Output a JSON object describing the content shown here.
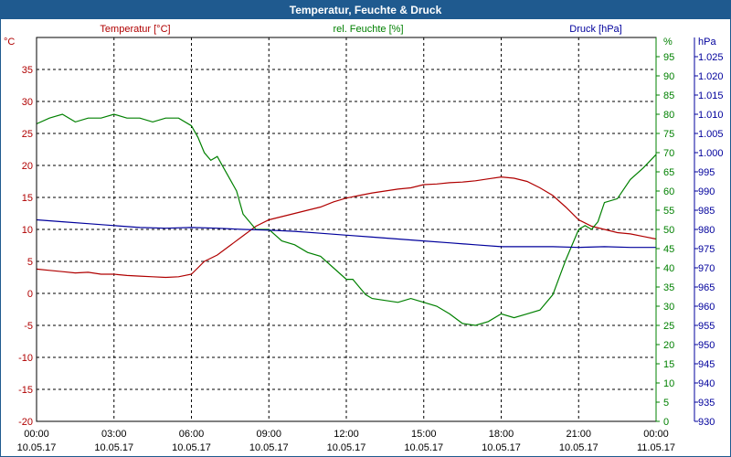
{
  "window": {
    "title": "Temperatur, Feuchte & Druck"
  },
  "chart_data": {
    "type": "line",
    "title": "Temperatur, Feuchte & Druck",
    "grid": true,
    "x_axis": {
      "range_hours": [
        0,
        24
      ],
      "ticks": [
        {
          "h": 0,
          "time": "00:00",
          "date": "10.05.17"
        },
        {
          "h": 3,
          "time": "03:00",
          "date": "10.05.17"
        },
        {
          "h": 6,
          "time": "06:00",
          "date": "10.05.17"
        },
        {
          "h": 9,
          "time": "09:00",
          "date": "10.05.17"
        },
        {
          "h": 12,
          "time": "12:00",
          "date": "10.05.17"
        },
        {
          "h": 15,
          "time": "15:00",
          "date": "10.05.17"
        },
        {
          "h": 18,
          "time": "18:00",
          "date": "10.05.17"
        },
        {
          "h": 21,
          "time": "21:00",
          "date": "10.05.17"
        },
        {
          "h": 24,
          "time": "00:00",
          "date": "11.05.17"
        }
      ]
    },
    "axes": {
      "temperature": {
        "label": "Temperatur [°C]",
        "unit": "°C",
        "ylim": [
          -20,
          40
        ],
        "ticks": [
          "35",
          "30",
          "25",
          "20",
          "15",
          "10",
          "5",
          "0",
          "-5",
          "-10",
          "-15",
          "-20"
        ],
        "color": "#b00000"
      },
      "humidity": {
        "label": "rel. Feuchte [%]",
        "unit": "%",
        "ylim": [
          0,
          100
        ],
        "ticks": [
          "95",
          "90",
          "85",
          "80",
          "75",
          "70",
          "65",
          "60",
          "55",
          "50",
          "45",
          "40",
          "35",
          "30",
          "25",
          "20",
          "15",
          "10",
          "5",
          "0"
        ],
        "color": "#008000"
      },
      "pressure": {
        "label": "Druck [hPa]",
        "unit": "hPa",
        "ylim": [
          930,
          1030
        ],
        "ticks": [
          "1.025",
          "1.020",
          "1.015",
          "1.010",
          "1.005",
          "1.000",
          "995",
          "990",
          "985",
          "980",
          "975",
          "970",
          "965",
          "960",
          "955",
          "950",
          "945",
          "940",
          "935",
          "930"
        ],
        "color": "#00009c"
      }
    },
    "series": [
      {
        "name": "Temperatur",
        "axis": "temperature",
        "color": "#b00000",
        "x": [
          0,
          0.5,
          1,
          1.5,
          2,
          2.5,
          3,
          3.5,
          4,
          4.5,
          5,
          5.5,
          6,
          6.25,
          6.5,
          6.75,
          7,
          7.5,
          8,
          8.5,
          9,
          9.5,
          10,
          10.5,
          11,
          11.5,
          12,
          12.5,
          13,
          13.5,
          14,
          14.5,
          15,
          15.5,
          16,
          16.5,
          17,
          17.5,
          18,
          18.5,
          19,
          19.5,
          20,
          20.5,
          21,
          21.5,
          22,
          22.5,
          23,
          23.5,
          24
        ],
        "values": [
          3.8,
          3.6,
          3.4,
          3.2,
          3.3,
          3.0,
          3.0,
          2.8,
          2.7,
          2.6,
          2.5,
          2.6,
          3.0,
          4.0,
          5.0,
          5.5,
          6.0,
          7.5,
          9.0,
          10.5,
          11.5,
          12.0,
          12.5,
          13.0,
          13.5,
          14.3,
          14.9,
          15.3,
          15.7,
          16.0,
          16.3,
          16.5,
          17.0,
          17.1,
          17.3,
          17.4,
          17.6,
          17.9,
          18.2,
          18.0,
          17.5,
          16.5,
          15.3,
          13.5,
          11.5,
          10.5,
          10.0,
          9.5,
          9.3,
          8.9,
          8.5
        ]
      },
      {
        "name": "rel. Feuchte",
        "axis": "humidity",
        "color": "#008000",
        "x": [
          0,
          0.5,
          1,
          1.5,
          2,
          2.5,
          3,
          3.5,
          4,
          4.5,
          5,
          5.5,
          6,
          6.25,
          6.5,
          6.75,
          7,
          7.25,
          7.5,
          7.75,
          8,
          8.5,
          9,
          9.5,
          10,
          10.5,
          11,
          11.5,
          12,
          12.25,
          12.5,
          12.75,
          13,
          13.5,
          14,
          14.5,
          15,
          15.5,
          16,
          16.5,
          17,
          17.5,
          18,
          18.5,
          19,
          19.5,
          20,
          20.5,
          21,
          21.25,
          21.5,
          21.75,
          22,
          22.5,
          23,
          23.5,
          24
        ],
        "values": [
          77.5,
          79,
          80,
          78,
          79,
          79,
          80,
          79,
          79,
          78,
          79,
          79,
          77,
          74,
          70,
          68,
          69,
          66,
          63,
          60,
          54,
          50,
          50,
          47,
          46,
          44,
          43,
          40,
          37,
          37,
          35,
          33,
          32,
          31.5,
          31,
          32,
          31,
          30,
          28,
          25.5,
          25,
          26,
          28,
          27,
          28,
          29,
          33,
          42,
          50,
          51,
          50,
          52,
          57,
          58,
          63,
          66,
          69.5
        ]
      },
      {
        "name": "Druck",
        "axis": "pressure",
        "color": "#00009c",
        "x": [
          0,
          1,
          2,
          3,
          4,
          5,
          6,
          7,
          8,
          9,
          10,
          11,
          12,
          13,
          14,
          15,
          16,
          17,
          18,
          19,
          20,
          21,
          22,
          23,
          24
        ],
        "values": [
          982.5,
          982,
          981.5,
          981,
          980.5,
          980.3,
          980.5,
          980.3,
          980,
          979.8,
          979.5,
          979,
          978.5,
          978,
          977.5,
          977,
          976.5,
          976,
          975.5,
          975.5,
          975.5,
          975.3,
          975.5,
          975.3,
          975.3
        ]
      }
    ]
  }
}
